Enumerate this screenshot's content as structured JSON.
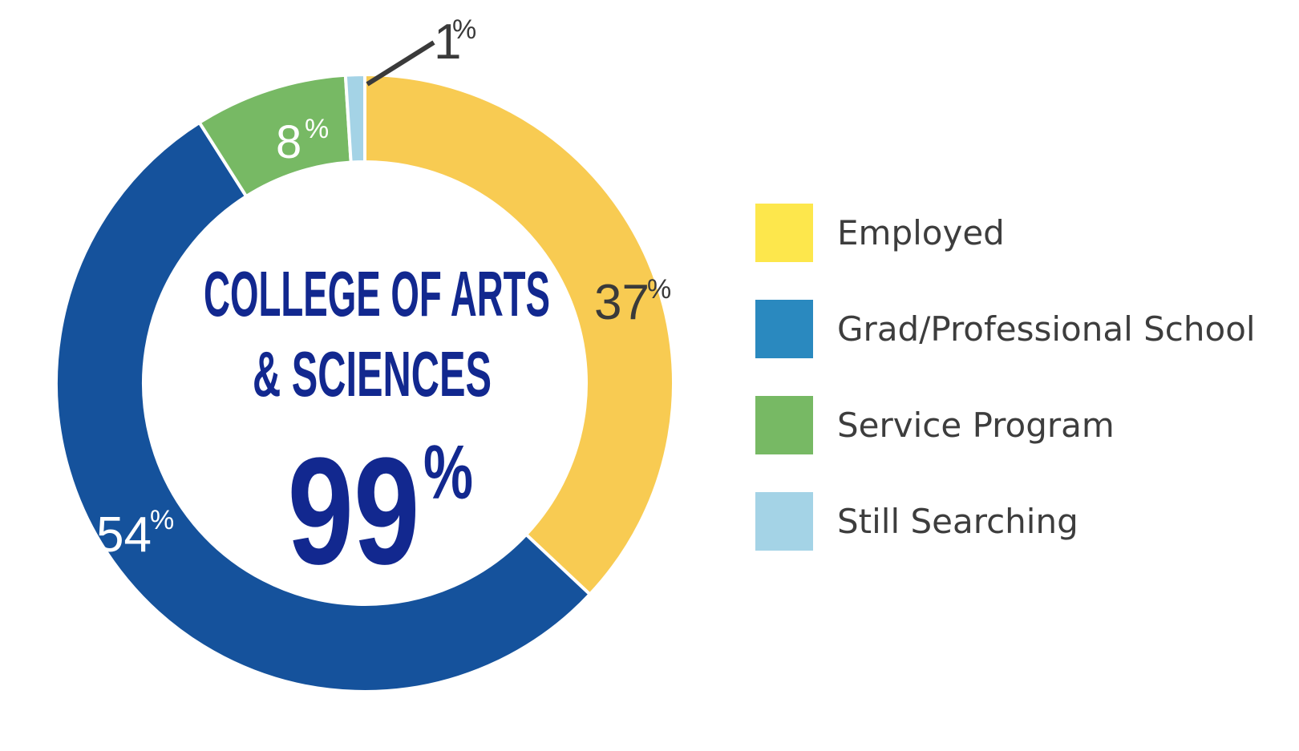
{
  "chart_data": {
    "type": "pie",
    "donut": true,
    "center": {
      "title_line1": "COLLEGE OF ARTS",
      "title_line2": "& SCIENCES",
      "total_value": "99",
      "total_unit": "%"
    },
    "slices": [
      {
        "label": "Employed",
        "value": 37,
        "value_text": "37",
        "unit": "%",
        "ring_color": "#f8cb52",
        "legend_color": "#fde74c",
        "label_color": "#3a3a3a"
      },
      {
        "label": "Grad/Professional School",
        "value": 54,
        "value_text": "54",
        "unit": "%",
        "ring_color": "#15529c",
        "legend_color": "#2a89bf",
        "label_color": "#ffffff"
      },
      {
        "label": "Service Program",
        "value": 8,
        "value_text": "8",
        "unit": "%",
        "ring_color": "#77b964",
        "legend_color": "#77b964",
        "label_color": "#ffffff"
      },
      {
        "label": "Still Searching",
        "value": 1,
        "value_text": "1",
        "unit": "%",
        "ring_color": "#a4d3e6",
        "legend_color": "#a4d3e6",
        "label_color": "#3a3a3a"
      }
    ],
    "legend_placement": "right"
  },
  "colors": {
    "center_text": "#12288f",
    "legend_text": "#3d3d3d",
    "leader_line": "#3a3a3a"
  }
}
